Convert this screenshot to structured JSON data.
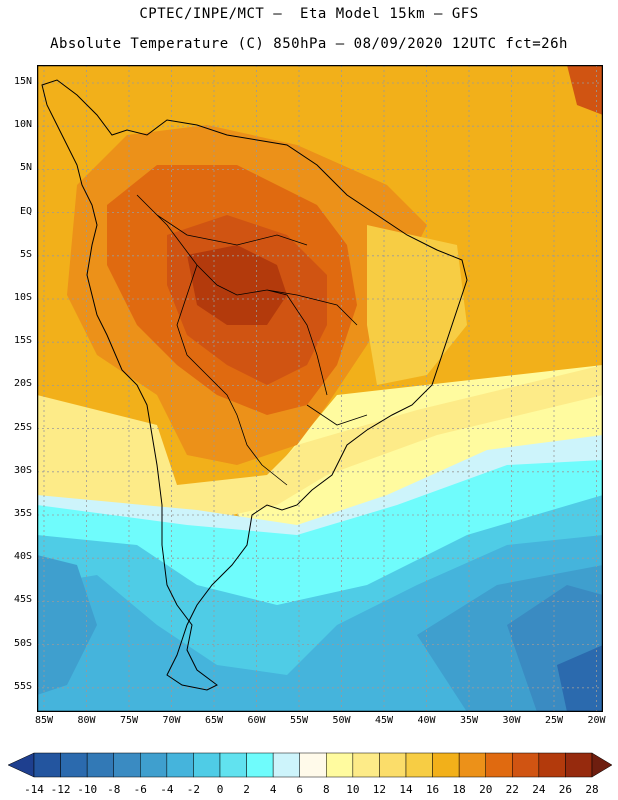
{
  "header": {
    "title_line1": "CPTEC/INPE/MCT –  Eta Model 15km – GFS",
    "title_line2": "Absolute Temperature (C) 850hPa – 08/09/2020 12UTC fct=26h"
  },
  "map": {
    "latitude_labels": [
      "15N",
      "10N",
      "5N",
      "EQ",
      "5S",
      "10S",
      "15S",
      "20S",
      "25S",
      "30S",
      "35S",
      "40S",
      "45S",
      "50S",
      "55S"
    ],
    "longitude_labels": [
      "85W",
      "80W",
      "75W",
      "70W",
      "65W",
      "60W",
      "55W",
      "50W",
      "45W",
      "40W",
      "35W",
      "30W",
      "25W",
      "20W"
    ]
  },
  "colorbar": {
    "labels": [
      "-14",
      "-12",
      "-10",
      "-8",
      "-6",
      "-4",
      "-2",
      "0",
      "2",
      "4",
      "6",
      "8",
      "10",
      "12",
      "14",
      "16",
      "18",
      "20",
      "22",
      "24",
      "26",
      "28"
    ],
    "colors": [
      "#1e3f8f",
      "#23559f",
      "#2b6aae",
      "#3279b6",
      "#3a8bc2",
      "#3f9fce",
      "#45b4dc",
      "#4fcce6",
      "#61e2ef",
      "#6ffcfc",
      "#cdf4fb",
      "#fffaea",
      "#fffb9f",
      "#fdeb88",
      "#fbdd6a",
      "#f7cd44",
      "#f2b01a",
      "#ec9119",
      "#e06a10",
      "#d05412",
      "#b33a0c",
      "#962a0d",
      "#6e1e0f"
    ]
  }
}
